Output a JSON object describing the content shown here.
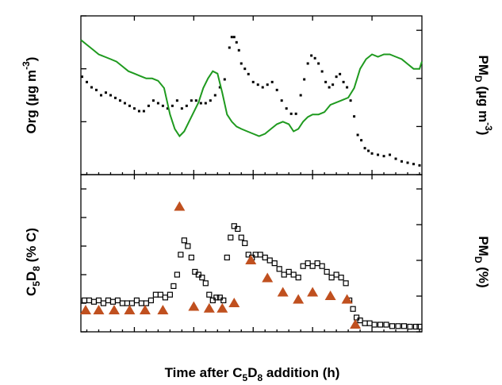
{
  "chart_data": [
    {
      "type": "line",
      "panel": "top",
      "xlabel": "Time after C5D8 addition (h)",
      "ylabel_left": "Org (µg m-3)",
      "ylabel_right": "PMD (µg m-3)",
      "xlim": [
        25.5,
        54.2
      ],
      "ylim_left": [
        0,
        6
      ],
      "ylim_right": [
        0,
        0.066
      ],
      "x_ticks": [
        "30",
        "35",
        "40",
        "45",
        "50"
      ],
      "y_left_ticks": [
        "0",
        "2",
        "4",
        "6"
      ],
      "y_right_ticks": [
        "0.00",
        "0.02",
        "0.04",
        "0.06"
      ],
      "grid": false,
      "series": [
        {
          "axis": "left",
          "marker": "dot",
          "color": "#000000",
          "x": [
            25.6,
            26.0,
            26.4,
            26.8,
            27.2,
            27.6,
            28.0,
            28.4,
            28.8,
            29.2,
            29.6,
            30.0,
            30.4,
            30.8,
            31.2,
            31.6,
            32.0,
            32.4,
            32.8,
            33.2,
            33.6,
            34.0,
            34.4,
            34.8,
            35.2,
            35.6,
            36.0,
            36.4,
            36.8,
            37.2,
            37.6,
            38.0,
            38.2,
            38.4,
            38.6,
            38.8,
            39.0,
            39.3,
            39.6,
            40.0,
            40.4,
            40.8,
            41.2,
            41.6,
            42.0,
            42.4,
            42.8,
            43.2,
            43.6,
            44.0,
            44.3,
            44.6,
            44.9,
            45.2,
            45.5,
            45.8,
            46.1,
            46.4,
            46.7,
            47.0,
            47.3,
            47.6,
            47.9,
            48.2,
            48.5,
            48.8,
            49.1,
            49.4,
            49.7,
            50.0,
            50.5,
            51.0,
            51.5,
            52.0,
            52.5,
            53.0,
            53.5,
            54.0
          ],
          "y": [
            3.7,
            3.5,
            3.3,
            3.2,
            3.0,
            3.1,
            3.0,
            2.9,
            2.8,
            2.7,
            2.6,
            2.5,
            2.4,
            2.4,
            2.6,
            2.8,
            2.7,
            2.6,
            2.5,
            2.6,
            2.8,
            2.5,
            2.6,
            2.8,
            2.8,
            2.7,
            2.7,
            2.8,
            3.0,
            3.3,
            3.6,
            4.8,
            5.2,
            5.2,
            5.0,
            4.7,
            4.2,
            4.0,
            3.8,
            3.5,
            3.4,
            3.3,
            3.4,
            3.5,
            3.2,
            2.8,
            2.5,
            2.3,
            2.3,
            3.0,
            3.6,
            4.2,
            4.5,
            4.4,
            4.2,
            3.9,
            3.5,
            3.3,
            3.4,
            3.7,
            3.8,
            3.5,
            3.3,
            2.8,
            2.2,
            1.5,
            1.3,
            1.0,
            0.9,
            0.8,
            0.75,
            0.7,
            0.75,
            0.6,
            0.5,
            0.45,
            0.4,
            0.35
          ]
        },
        {
          "axis": "right",
          "marker": "line",
          "color": "#1f9a1f",
          "x": [
            25.5,
            26.0,
            26.5,
            27.0,
            27.5,
            28.0,
            28.5,
            29.0,
            29.5,
            30.0,
            30.5,
            31.0,
            31.5,
            32.0,
            32.5,
            33.0,
            33.4,
            33.8,
            34.2,
            34.6,
            35.0,
            35.4,
            35.8,
            36.2,
            36.6,
            37.0,
            37.4,
            37.8,
            38.2,
            38.6,
            39.0,
            39.5,
            40.0,
            40.5,
            41.0,
            41.5,
            42.0,
            42.5,
            43.0,
            43.4,
            43.8,
            44.2,
            44.6,
            45.0,
            45.5,
            46.0,
            46.5,
            47.0,
            47.5,
            48.0,
            48.5,
            49.0,
            49.5,
            50.0,
            50.5,
            51.0,
            51.5,
            52.0,
            52.5,
            53.0,
            53.5,
            54.0,
            54.2
          ],
          "y": [
            0.056,
            0.054,
            0.052,
            0.05,
            0.049,
            0.048,
            0.047,
            0.045,
            0.043,
            0.042,
            0.041,
            0.04,
            0.04,
            0.039,
            0.036,
            0.025,
            0.019,
            0.016,
            0.018,
            0.022,
            0.026,
            0.03,
            0.036,
            0.04,
            0.043,
            0.042,
            0.034,
            0.025,
            0.022,
            0.02,
            0.019,
            0.018,
            0.017,
            0.016,
            0.017,
            0.019,
            0.021,
            0.022,
            0.021,
            0.018,
            0.019,
            0.022,
            0.024,
            0.025,
            0.025,
            0.026,
            0.029,
            0.03,
            0.031,
            0.032,
            0.036,
            0.044,
            0.048,
            0.05,
            0.049,
            0.05,
            0.05,
            0.049,
            0.048,
            0.046,
            0.044,
            0.044,
            0.047
          ]
        }
      ]
    },
    {
      "type": "scatter",
      "panel": "bottom",
      "xlabel": "Time after C5D8 addition (h)",
      "ylabel_left": "C5D8 (% C)",
      "ylabel_right": "PMD (%)",
      "xlim": [
        25.5,
        54.2
      ],
      "ylim_left": [
        0,
        55
      ],
      "ylim_right": [
        0,
        4.4
      ],
      "x_ticks": [
        "30",
        "35",
        "40",
        "45",
        "50"
      ],
      "y_left_ticks": [
        "0",
        "10",
        "20",
        "30",
        "40",
        "50"
      ],
      "y_right_ticks": [
        "0",
        "1",
        "2",
        "3",
        "4"
      ],
      "grid": false,
      "series": [
        {
          "axis": "left",
          "marker": "open-square",
          "color": "#000000",
          "x": [
            25.8,
            26.2,
            26.6,
            27.0,
            27.4,
            27.8,
            28.2,
            28.6,
            29.0,
            29.4,
            29.8,
            30.2,
            30.6,
            31.0,
            31.4,
            31.8,
            32.2,
            32.6,
            33.0,
            33.3,
            33.6,
            33.9,
            34.2,
            34.5,
            34.8,
            35.1,
            35.4,
            35.7,
            36.0,
            36.3,
            36.6,
            36.9,
            37.2,
            37.5,
            37.8,
            38.1,
            38.4,
            38.7,
            39.0,
            39.3,
            39.6,
            39.9,
            40.2,
            40.6,
            41.0,
            41.4,
            41.8,
            42.2,
            42.6,
            43.0,
            43.4,
            43.8,
            44.2,
            44.6,
            45.0,
            45.4,
            45.8,
            46.2,
            46.6,
            47.0,
            47.4,
            47.8,
            48.1,
            48.4,
            48.7,
            49.0,
            49.4,
            49.8,
            50.2,
            50.7,
            51.2,
            51.7,
            52.2,
            52.7,
            53.2,
            53.7,
            54.0
          ],
          "y": [
            11,
            11,
            10.5,
            11,
            10,
            11,
            10.5,
            11,
            10,
            10,
            10,
            11,
            10,
            10,
            11,
            13,
            13,
            12,
            13,
            16,
            20,
            27,
            32,
            30,
            26,
            21,
            20,
            19,
            17,
            13,
            11,
            12,
            12,
            11,
            26,
            33,
            37,
            36,
            33,
            31,
            27,
            26,
            27,
            27,
            26,
            25,
            24,
            22,
            20,
            21,
            20,
            19,
            23,
            24,
            23,
            24,
            23,
            21,
            19,
            20,
            19,
            17,
            11,
            8,
            5,
            4,
            3,
            3,
            2.5,
            2.5,
            2.5,
            2,
            2,
            2,
            1.8,
            1.8,
            1.8
          ]
        },
        {
          "axis": "right",
          "marker": "triangle",
          "color": "#c0501f",
          "x": [
            25.9,
            27.0,
            28.3,
            29.6,
            30.9,
            32.4,
            33.8,
            35.0,
            36.3,
            37.4,
            38.4,
            39.8,
            41.2,
            42.5,
            43.8,
            45.0,
            46.5,
            47.9,
            48.6
          ],
          "y": [
            0.6,
            0.6,
            0.6,
            0.6,
            0.6,
            0.6,
            3.5,
            0.7,
            0.65,
            0.65,
            0.8,
            2.0,
            1.5,
            1.1,
            0.9,
            1.1,
            1.0,
            0.9,
            0.2
          ]
        }
      ]
    }
  ]
}
